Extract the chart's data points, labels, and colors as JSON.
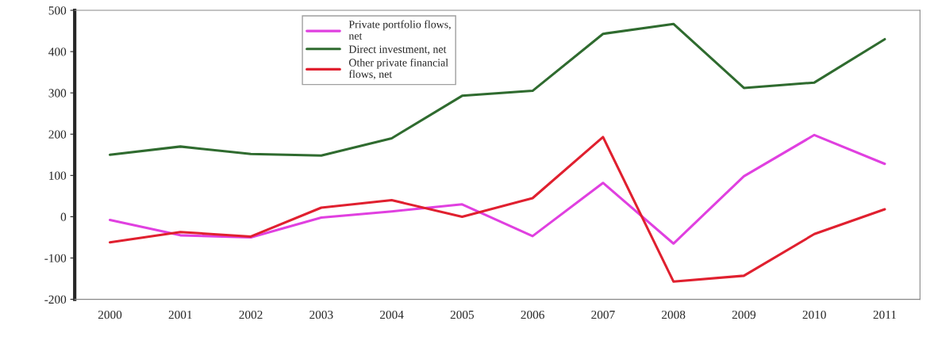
{
  "chart_data": {
    "type": "line",
    "categories": [
      "2000",
      "2001",
      "2002",
      "2003",
      "2004",
      "2005",
      "2006",
      "2007",
      "2008",
      "2009",
      "2010",
      "2011"
    ],
    "series": [
      {
        "name": "Private portfolio flows,\nnet",
        "color": "#e040e0",
        "values": [
          -8,
          -45,
          -50,
          -2,
          13,
          30,
          -47,
          82,
          -65,
          98,
          198,
          128
        ]
      },
      {
        "name": "Direct investment, net",
        "color": "#2f6b2f",
        "values": [
          150,
          170,
          152,
          148,
          190,
          293,
          305,
          443,
          467,
          312,
          325,
          430
        ]
      },
      {
        "name": "Other private financial\nflows, net",
        "color": "#e0202f",
        "values": [
          -62,
          -37,
          -48,
          22,
          40,
          0,
          45,
          193,
          -157,
          -143,
          -42,
          18
        ]
      }
    ],
    "ylim": [
      -200,
      500
    ],
    "yticks": [
      -200,
      -100,
      0,
      100,
      200,
      300,
      400,
      500
    ],
    "grid": false,
    "legend": "top",
    "marker": "none",
    "line_style": "solid"
  }
}
